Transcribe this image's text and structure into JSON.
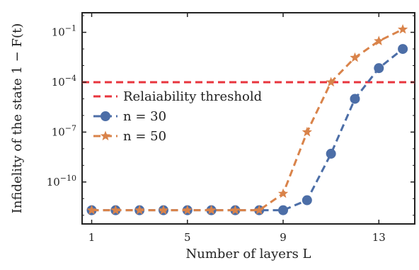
{
  "chart_data": {
    "type": "line",
    "xlabel": "Number of layers L",
    "ylabel": "Infidelity of the state 1 − F(t)",
    "yscale": "log",
    "xlim": [
      0.6,
      14.5
    ],
    "ylim": [
      3e-13,
      1.5
    ],
    "x_ticks": [
      1,
      5,
      9,
      13
    ],
    "y_ticks": [
      {
        "value": 1e-10,
        "base": "10",
        "exp": "−10"
      },
      {
        "value": 1e-07,
        "base": "10",
        "exp": "−7"
      },
      {
        "value": 0.0001,
        "base": "10",
        "exp": "−4"
      },
      {
        "value": 0.1,
        "base": "10",
        "exp": "−1"
      }
    ],
    "threshold": {
      "value": 0.0001,
      "name": "Relaiability threshold",
      "color": "#e8343d"
    },
    "series": [
      {
        "name": "n = 30",
        "color": "#4c6ea7",
        "marker": "circle",
        "x": [
          1,
          2,
          3,
          4,
          5,
          6,
          7,
          8,
          9,
          10,
          11,
          12,
          13,
          14
        ],
        "y": [
          2e-12,
          2e-12,
          2e-12,
          2e-12,
          2e-12,
          2e-12,
          2e-12,
          2e-12,
          2e-12,
          8e-12,
          5e-09,
          1e-05,
          0.0007,
          0.01
        ]
      },
      {
        "name": "n = 50",
        "color": "#d9834a",
        "marker": "star",
        "x": [
          1,
          2,
          3,
          4,
          5,
          6,
          7,
          8,
          9,
          10,
          11,
          12,
          13,
          14
        ],
        "y": [
          2e-12,
          2e-12,
          2e-12,
          2e-12,
          2e-12,
          2e-12,
          2e-12,
          2e-12,
          2e-11,
          1e-07,
          0.0001,
          0.003,
          0.03,
          0.15
        ]
      }
    ]
  }
}
